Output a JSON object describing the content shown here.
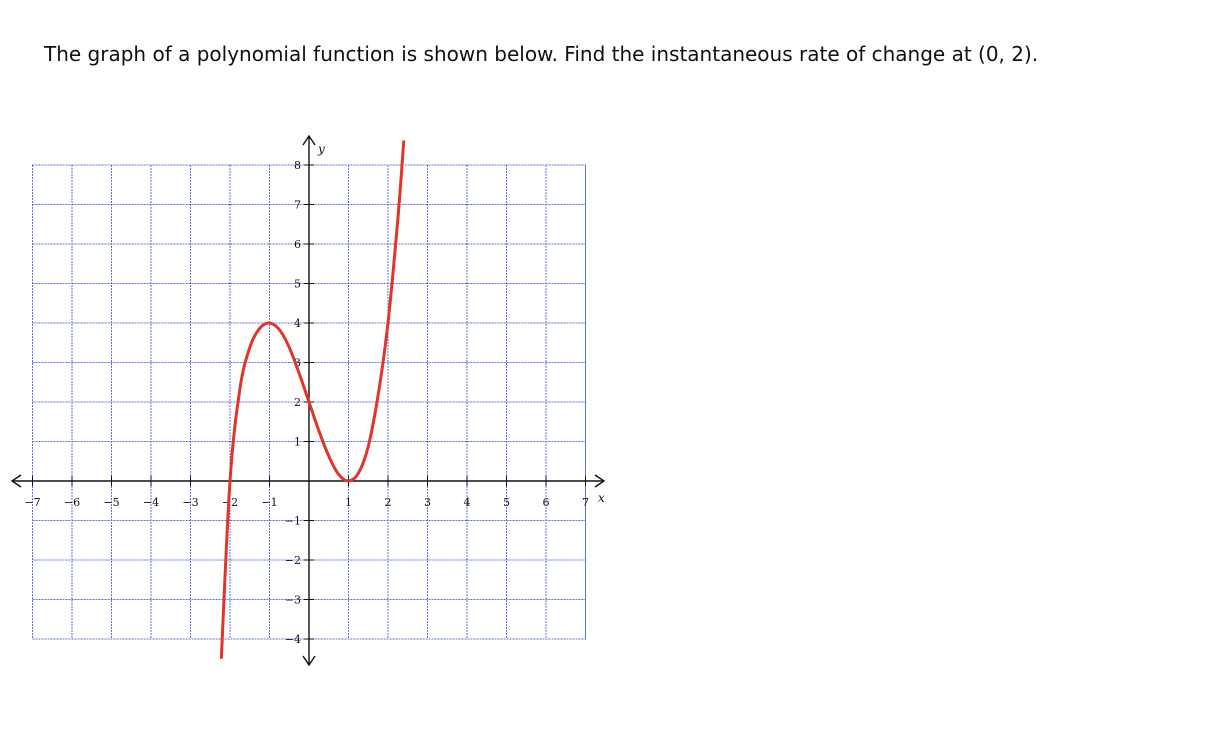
{
  "question": "The graph of a polynomial function is shown below. Find the instantaneous rate of change at (0, 2).",
  "chart_data": {
    "type": "line",
    "series": [
      {
        "x": [
          -2.22,
          -2.0,
          -1.75,
          -1.5,
          -1.25,
          -1.0,
          -0.75,
          -0.5,
          -0.25,
          0,
          0.25,
          0.5,
          0.75,
          1.0,
          1.25,
          1.5,
          1.75,
          2.0,
          2.25,
          2.4
        ],
        "y": [
          -4.5,
          0,
          2.33,
          3.38,
          3.86,
          4.0,
          3.83,
          3.38,
          2.73,
          2.0,
          1.27,
          0.63,
          0.17,
          0,
          0.2,
          0.88,
          2.17,
          4.0,
          6.64,
          8.62
        ]
      }
    ],
    "xlim": [
      -7,
      7
    ],
    "ylim": [
      -4,
      8
    ],
    "x_ticks": [
      "−7",
      "−6",
      "−5",
      "−4",
      "−3",
      "−2",
      "−1",
      "1",
      "2",
      "3",
      "4",
      "5",
      "6",
      "7"
    ],
    "y_ticks": [
      "8",
      "7",
      "6",
      "5",
      "4",
      "3",
      "2",
      "1",
      "−1",
      "−2",
      "−3",
      "−4"
    ],
    "xlabel": "x",
    "ylabel": "y",
    "grid": true,
    "curve_color": "#e0352b",
    "grid_color": "#5b6fe0"
  }
}
